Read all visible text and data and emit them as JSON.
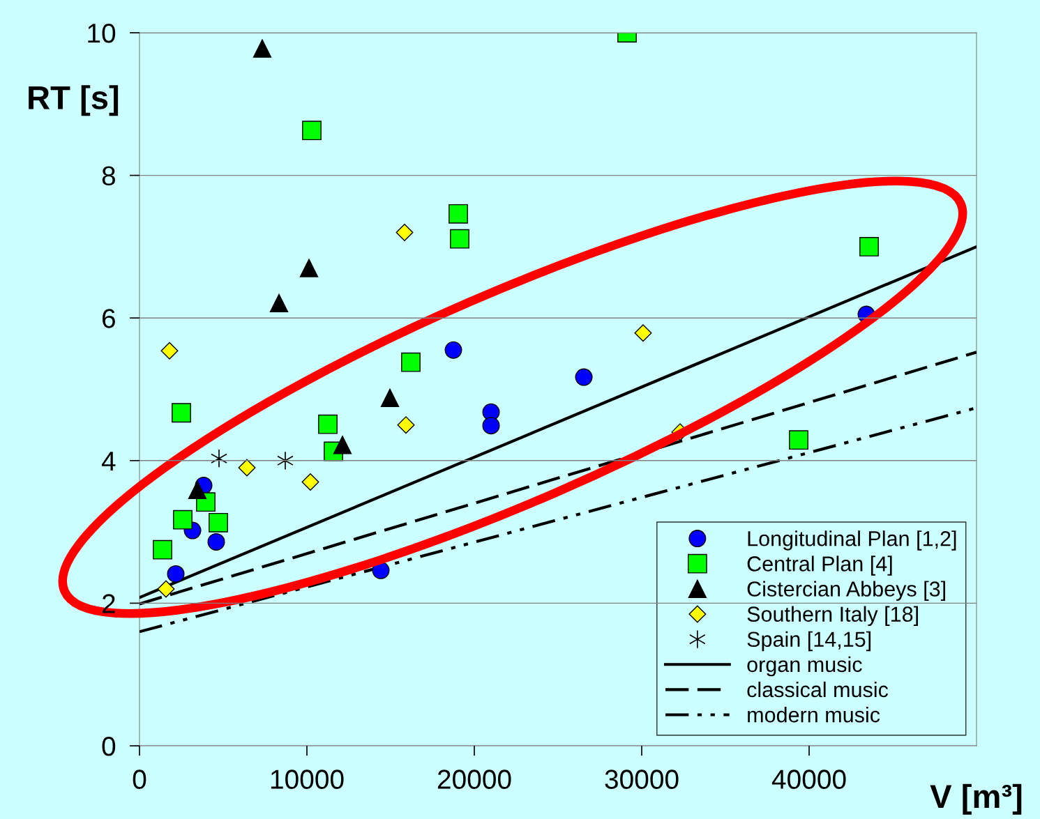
{
  "chart_data": {
    "type": "scatter",
    "xlabel": "V [m³]",
    "ylabel": "RT [s]",
    "xlim": [
      0,
      50000
    ],
    "ylim": [
      0,
      10
    ],
    "xticks": [
      0,
      10000,
      20000,
      30000,
      40000
    ],
    "yticks": [
      0,
      2,
      4,
      6,
      8,
      10
    ],
    "grid": "y",
    "legend": "bottom right",
    "series": [
      {
        "name": "Longitudinal Plan [1,2]",
        "color": "#0000ff",
        "marker": "circle",
        "x": [
          2167,
          3167,
          3833,
          4583,
          14417,
          18750,
          21000,
          21000,
          26542,
          43417
        ],
        "values": [
          2.41,
          3.02,
          3.65,
          2.86,
          2.46,
          5.55,
          4.68,
          4.49,
          5.17,
          6.05
        ]
      },
      {
        "name": "Central Plan [4]",
        "color": "#00ff00",
        "marker": "square",
        "x": [
          1375,
          2500,
          2583,
          3958,
          4708,
          10292,
          11250,
          11583,
          16208,
          19042,
          19125,
          29125,
          39375,
          43583
        ],
        "values": [
          2.75,
          4.67,
          3.17,
          3.42,
          3.13,
          8.63,
          4.51,
          4.13,
          5.38,
          7.46,
          7.11,
          10.0,
          4.29,
          7.0
        ]
      },
      {
        "name": "Cistercian Abbeys [3]",
        "color": "#000000",
        "marker": "triangle",
        "x": [
          7333,
          10125,
          8333,
          3458,
          14958,
          12125
        ],
        "values": [
          9.78,
          6.7,
          6.21,
          3.59,
          4.88,
          4.22
        ]
      },
      {
        "name": "Southern Italy [18]",
        "color": "#ffff00",
        "marker": "diamond",
        "x": [
          1792,
          1583,
          6417,
          10208,
          15833,
          15917,
          30083,
          32292
        ],
        "values": [
          5.54,
          2.2,
          3.9,
          3.7,
          7.2,
          4.5,
          5.79,
          4.4
        ]
      },
      {
        "name": "Spain [14,15]",
        "color": "#000000",
        "marker": "cross",
        "x": [
          4750,
          8708
        ],
        "values": [
          4.03,
          4.0
        ]
      },
      {
        "name": "organ music",
        "type": "line",
        "color": "#000000",
        "line_style": "solid",
        "x": [
          0,
          50000
        ],
        "values": [
          2.08,
          7.0
        ]
      },
      {
        "name": "classical music",
        "type": "line",
        "color": "#000000",
        "line_style": "dashed",
        "x": [
          0,
          50000
        ],
        "values": [
          1.99,
          5.52
        ]
      },
      {
        "name": "modern music",
        "type": "line",
        "color": "#000000",
        "line_style": "dashdotdot",
        "x": [
          0,
          50000
        ],
        "values": [
          1.6,
          4.74
        ]
      }
    ]
  }
}
